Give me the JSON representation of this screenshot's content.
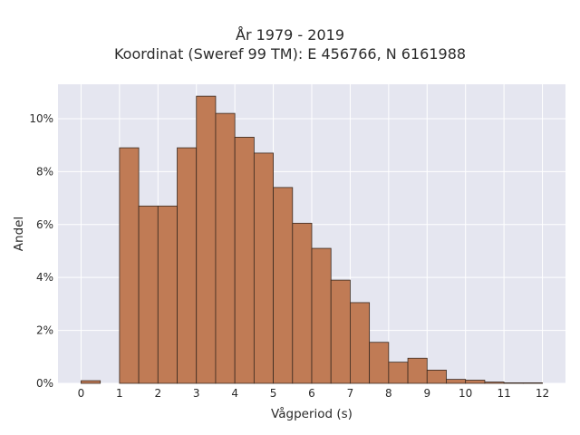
{
  "chart_data": {
    "type": "bar",
    "title": "År 1979 - 2019",
    "subtitle": "Koordinat (Sweref 99 TM): E 456766, N 6161988",
    "xlabel": "Vågperiod (s)",
    "ylabel": "Andel",
    "x_ticks": [
      "0",
      "1",
      "2",
      "3",
      "4",
      "5",
      "6",
      "7",
      "8",
      "9",
      "10",
      "11",
      "12"
    ],
    "y_ticks": [
      "0%",
      "2%",
      "4%",
      "6%",
      "8%",
      "10%"
    ],
    "xlim": [
      -0.6,
      12.6
    ],
    "ylim": [
      0,
      11.3
    ],
    "bin_width": 0.5,
    "bin_starts": [
      0,
      1,
      1.5,
      2,
      2.5,
      3,
      3.5,
      4,
      4.5,
      5,
      5.5,
      6,
      6.5,
      7,
      7.5,
      8,
      8.5,
      9,
      9.5,
      10,
      10.5,
      11,
      11.5
    ],
    "values": [
      0.1,
      8.9,
      6.7,
      6.7,
      8.9,
      10.85,
      10.2,
      9.3,
      8.7,
      7.4,
      6.05,
      5.1,
      3.9,
      3.05,
      1.55,
      0.8,
      0.95,
      0.5,
      0.15,
      0.12,
      0.05,
      0.02,
      0.02
    ],
    "bar_color": "#c07b55",
    "bar_edge_color": "#3a2a20",
    "plot_background": "#e5e6f0",
    "grid": true
  }
}
